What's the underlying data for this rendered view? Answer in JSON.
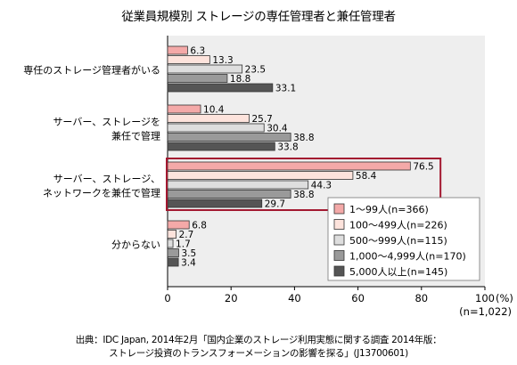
{
  "chart_data": {
    "type": "bar",
    "orientation": "horizontal",
    "title": "従業員規模別 ストレージの専任管理者と兼任管理者",
    "categories": [
      [
        "専任のストレージ管理者がいる"
      ],
      [
        "サーバー、ストレージを",
        "兼任で管理"
      ],
      [
        "サーバー、ストレージ、",
        "ネットワークを兼任で管理"
      ],
      [
        "分からない"
      ]
    ],
    "series": [
      {
        "name": "1～99人(n=366)",
        "color": "#f4a9a8",
        "values": [
          6.3,
          10.4,
          76.5,
          6.8
        ],
        "labels": [
          "6.3",
          "10.4",
          "76.5",
          "6.8"
        ]
      },
      {
        "name": "100～499人(n=226)",
        "color": "#fde3dc",
        "values": [
          13.3,
          25.7,
          58.4,
          2.7
        ],
        "labels": [
          "13.3",
          "25.7",
          "58.4",
          "2.7"
        ]
      },
      {
        "name": "500～999人(n=115)",
        "color": "#dedede",
        "values": [
          23.5,
          30.4,
          44.3,
          1.7
        ],
        "labels": [
          "23.5",
          "30.4",
          "44.3",
          "1.7"
        ]
      },
      {
        "name": "1,000～4,999人(n=170)",
        "color": "#9a9a9a",
        "values": [
          18.8,
          38.8,
          38.8,
          3.5
        ],
        "labels": [
          "18.8",
          "38.8",
          "38.8",
          "3.5"
        ]
      },
      {
        "name": "5,000人以上(n=145)",
        "color": "#555555",
        "values": [
          33.1,
          33.8,
          29.7,
          3.4
        ],
        "labels": [
          "33.1",
          "33.8",
          "29.7",
          "3.4"
        ]
      }
    ],
    "xlim": [
      0,
      100
    ],
    "xticks": [
      "0",
      "20",
      "40",
      "60",
      "80",
      "100"
    ],
    "x_unit_label": "(%)",
    "n_note": "(n=1,022)",
    "grid": false,
    "legend_position": "inside-right",
    "highlighted_category": 2,
    "highlight_color": "#a31830",
    "plot_background": "#eeeeee"
  },
  "source": {
    "line1": "出典：IDC Japan, 2014年2月「国内企業のストレージ利用実態に関する調査 2014年版：",
    "line2": "ストレージ投資のトランスフォーメーションの影響を探る」(J13700601)"
  }
}
